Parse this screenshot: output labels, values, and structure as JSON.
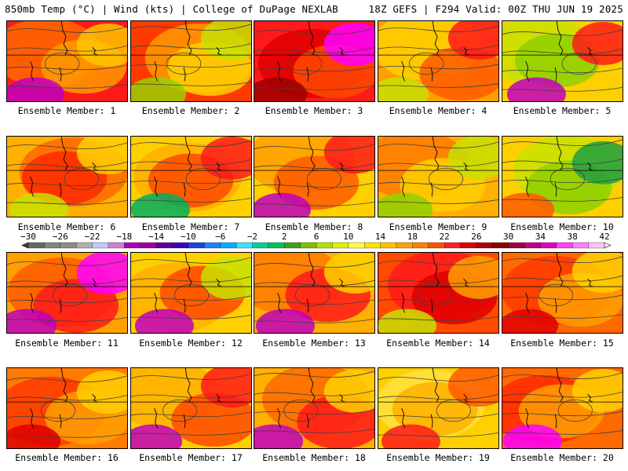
{
  "header": {
    "left": "850mb Temp (°C) | Wind (kts) | College of DuPage NEXLAB",
    "right": "18Z GEFS | F294 Valid: 00Z THU JUN 19 2025"
  },
  "panels": [
    {
      "label": "Ensemble Member: 1",
      "palette": [
        "#ff1a1a",
        "#ff6a00",
        "#ff9a00",
        "#ffc400",
        "#c000c0"
      ]
    },
    {
      "label": "Ensemble Member: 2",
      "palette": [
        "#ff3a00",
        "#ff9a00",
        "#ffd000",
        "#c8e000",
        "#9ad000"
      ]
    },
    {
      "label": "Ensemble Member: 3",
      "palette": [
        "#ff1a1a",
        "#e00000",
        "#ff4a00",
        "#ff00ff",
        "#a00000"
      ]
    },
    {
      "label": "Ensemble Member: 4",
      "palette": [
        "#ffa000",
        "#ffd000",
        "#ff5a00",
        "#ff1a1a",
        "#c8e000"
      ]
    },
    {
      "label": "Ensemble Member: 5",
      "palette": [
        "#ffd000",
        "#c8e000",
        "#90d000",
        "#ff1a1a",
        "#c000c0"
      ]
    },
    {
      "label": "Ensemble Member: 6",
      "palette": [
        "#ffb000",
        "#ff6a00",
        "#ff2a00",
        "#ffd000",
        "#c8e000"
      ]
    },
    {
      "label": "Ensemble Member: 7",
      "palette": [
        "#ffd000",
        "#ffb000",
        "#ff4a00",
        "#ff1a1a",
        "#00b060"
      ]
    },
    {
      "label": "Ensemble Member: 8",
      "palette": [
        "#ffd000",
        "#ffa000",
        "#ff5a00",
        "#ff1a1a",
        "#c000c0"
      ]
    },
    {
      "label": "Ensemble Member: 9",
      "palette": [
        "#ffb000",
        "#ff7a00",
        "#ffd000",
        "#c8e000",
        "#90d000"
      ]
    },
    {
      "label": "Ensemble Member: 10",
      "palette": [
        "#ffd000",
        "#c8e000",
        "#90d000",
        "#20a040",
        "#ff5a00"
      ]
    },
    {
      "label": "Ensemble Member: 11",
      "palette": [
        "#ffa000",
        "#ff5a00",
        "#ff1a1a",
        "#ff00ff",
        "#c000c0"
      ]
    },
    {
      "label": "Ensemble Member: 12",
      "palette": [
        "#ffd000",
        "#ffb000",
        "#ff4a00",
        "#c8e000",
        "#c000c0"
      ]
    },
    {
      "label": "Ensemble Member: 13",
      "palette": [
        "#ffb000",
        "#ff7a00",
        "#ff1a1a",
        "#ffd000",
        "#c000c0"
      ]
    },
    {
      "label": "Ensemble Member: 14",
      "palette": [
        "#ff4a00",
        "#ff1a1a",
        "#e00000",
        "#ffa000",
        "#c8e000"
      ]
    },
    {
      "label": "Ensemble Member: 15",
      "palette": [
        "#ff6a00",
        "#ff3a00",
        "#ffa000",
        "#ffd000",
        "#e00000"
      ]
    },
    {
      "label": "Ensemble Member: 16",
      "palette": [
        "#ff7a00",
        "#ff3a00",
        "#ffa000",
        "#ffd000",
        "#e00000"
      ]
    },
    {
      "label": "Ensemble Member: 17",
      "palette": [
        "#ffd000",
        "#ffb000",
        "#ff4a00",
        "#ff1a1a",
        "#c000c0"
      ]
    },
    {
      "label": "Ensemble Member: 18",
      "palette": [
        "#ffb000",
        "#ff6a00",
        "#ff1a1a",
        "#ffd000",
        "#c000c0"
      ]
    },
    {
      "label": "Ensemble Member: 19",
      "palette": [
        "#ffd000",
        "#ffe040",
        "#ffb000",
        "#ff5a00",
        "#ff1a1a"
      ]
    },
    {
      "label": "Ensemble Member: 20",
      "palette": [
        "#ff6a00",
        "#ff2a00",
        "#ffa000",
        "#ffd000",
        "#ff00ff"
      ]
    }
  ],
  "colorbar": {
    "labels": [
      "−30",
      "−26",
      "−22",
      "−18",
      "−14",
      "−10",
      "−6",
      "−2",
      "2",
      "6",
      "10",
      "14",
      "18",
      "22",
      "26",
      "30",
      "34",
      "38",
      "42"
    ],
    "colors": [
      "#606c60",
      "#7c887c",
      "#8c8c8c",
      "#b0b0b0",
      "#c8c8ff",
      "#d080d0",
      "#b000b0",
      "#a000a0",
      "#6000a0",
      "#4000c0",
      "#2040e0",
      "#2080ff",
      "#00b0ff",
      "#40e0ff",
      "#00d0a0",
      "#00c060",
      "#40a020",
      "#80c000",
      "#b0e000",
      "#e0f000",
      "#ffff40",
      "#ffe000",
      "#ffc000",
      "#ffa000",
      "#ff8000",
      "#ff5000",
      "#ff2020",
      "#e00000",
      "#b00000",
      "#900000",
      "#a00040",
      "#c00080",
      "#e000c0",
      "#ff40ff",
      "#ff80ff",
      "#ffc0ff"
    ]
  }
}
